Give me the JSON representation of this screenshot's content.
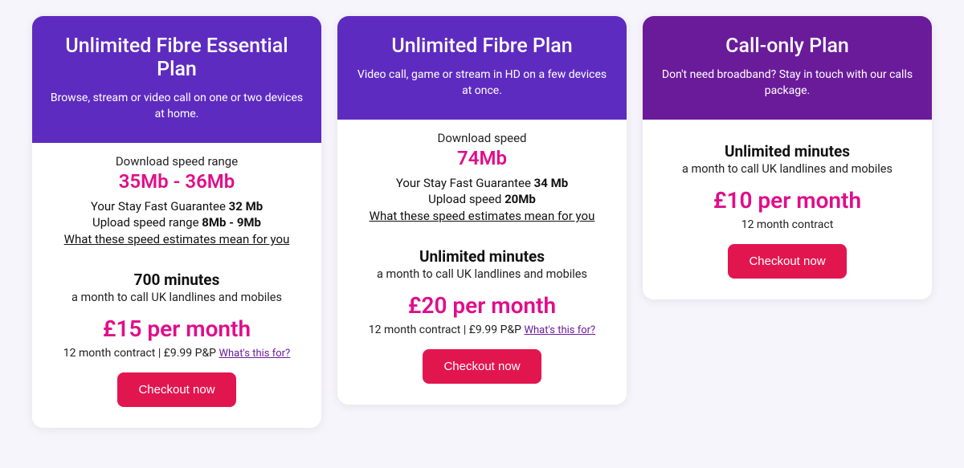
{
  "colors": {
    "header_bg_purple": "#5e2bc1",
    "header_bg_deep": "#6a1b9a",
    "accent_pink": "#e10d8a",
    "button_red": "#e2164f",
    "text_dark": "#111111",
    "body_bg": "#f7f5fc",
    "card_bg": "#ffffff"
  },
  "plans": [
    {
      "id": "essential",
      "header_style": "purple",
      "title": "Unlimited Fibre Essential Plan",
      "subtitle": "Browse, stream or video call on one or two devices at home.",
      "speed_label": "Download speed range",
      "speed_value": "35Mb - 36Mb",
      "guarantee_prefix": "Your Stay Fast Guarantee ",
      "guarantee_value": "32 Mb",
      "upload_prefix": "Upload speed range ",
      "upload_value": "8Mb - 9Mb",
      "speed_link": "What these speed estimates mean for you",
      "minutes_title": "700 minutes",
      "minutes_sub": "a month to call UK landlines and mobiles",
      "price": "£15 per month",
      "contract": "12 month contract | £9.99 P&P ",
      "whats_this": "What's this for?",
      "button": "Checkout now"
    },
    {
      "id": "fibre",
      "header_style": "purple",
      "title": "Unlimited Fibre Plan",
      "subtitle": "Video call, game or stream in HD on a few devices at once.",
      "speed_label": "Download speed",
      "speed_value": "74Mb",
      "guarantee_prefix": "Your Stay Fast Guarantee ",
      "guarantee_value": "34 Mb",
      "upload_prefix": "Upload speed ",
      "upload_value": "20Mb",
      "speed_link": "What these speed estimates mean for you",
      "minutes_title": "Unlimited minutes",
      "minutes_sub": "a month to call UK landlines and mobiles",
      "price": "£20 per month",
      "contract": "12 month contract | £9.99 P&P ",
      "whats_this": "What's this for?",
      "button": "Checkout now"
    },
    {
      "id": "call-only",
      "header_style": "deep-purple",
      "title": "Call-only Plan",
      "subtitle": "Don't need broadband? Stay in touch with our calls package.",
      "minutes_title": "Unlimited minutes",
      "minutes_sub": "a month to call UK landlines and mobiles",
      "price": "£10 per month",
      "contract": "12 month contract",
      "button": "Checkout now"
    }
  ]
}
